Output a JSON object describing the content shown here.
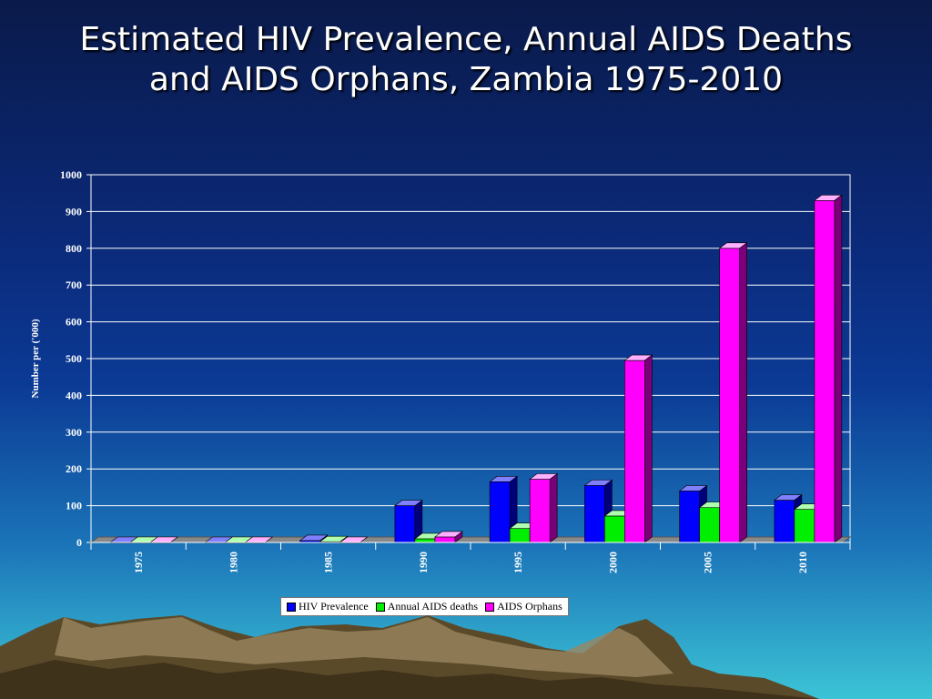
{
  "slide": {
    "title": "Estimated HIV Prevalence, Annual AIDS Deaths and AIDS Orphans, Zambia 1975-2010"
  },
  "colors": {
    "hiv": "#0000ff",
    "deaths": "#00ee00",
    "orphans": "#ff00ff",
    "plot_bg": "#0b2a7a",
    "grid": "#ffffff"
  },
  "chart_data": {
    "type": "bar",
    "title": "Estimated HIV Prevalence, Annual AIDS Deaths and AIDS Orphans, Zambia 1975-2010",
    "categories": [
      "1975",
      "1980",
      "1985",
      "1990",
      "1995",
      "2000",
      "2005",
      "2010"
    ],
    "series": [
      {
        "name": "HIV Prevalence",
        "values": [
          0,
          0,
          5,
          100,
          165,
          155,
          140,
          115
        ]
      },
      {
        "name": "Annual AIDS deaths",
        "values": [
          0,
          0,
          2,
          10,
          38,
          72,
          95,
          90
        ]
      },
      {
        "name": "AIDS Orphans",
        "values": [
          0,
          0,
          0,
          15,
          172,
          495,
          800,
          930
        ]
      }
    ],
    "xlabel": "",
    "ylabel": "Number per ('000)",
    "ylim": [
      0,
      1000
    ],
    "yticks": [
      0,
      100,
      200,
      300,
      400,
      500,
      600,
      700,
      800,
      900,
      1000
    ],
    "grid": true,
    "legend": "bottom-center"
  }
}
